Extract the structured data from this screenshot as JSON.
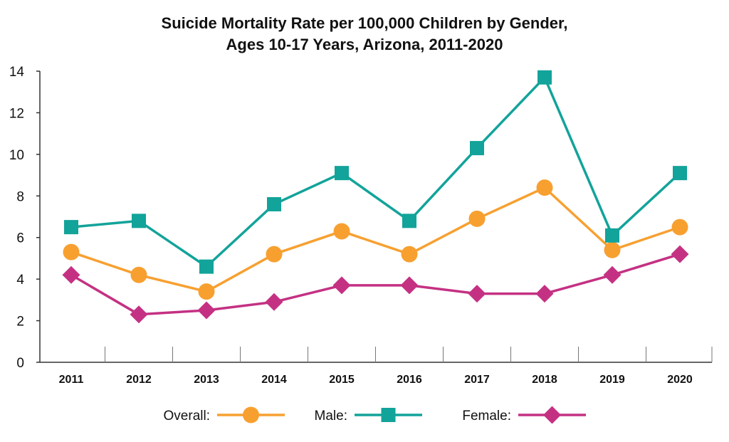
{
  "chart_data": {
    "type": "line",
    "title_lines": [
      "Suicide Mortality Rate per 100,000 Children by Gender,",
      "Ages 10-17 Years, Arizona, 2011-2020"
    ],
    "categories": [
      "2011",
      "2012",
      "2013",
      "2014",
      "2015",
      "2016",
      "2017",
      "2018",
      "2019",
      "2020"
    ],
    "ylim": [
      0,
      14
    ],
    "yticks": [
      0,
      2,
      4,
      6,
      8,
      10,
      12,
      14
    ],
    "grid": false,
    "legend_position": "bottom",
    "series": [
      {
        "name": "Overall:",
        "marker": "circle",
        "color": "#F7A030",
        "values": [
          5.3,
          4.2,
          3.4,
          5.2,
          6.3,
          5.2,
          6.9,
          8.4,
          5.4,
          6.5
        ]
      },
      {
        "name": "Male:",
        "marker": "square",
        "color": "#12A39A",
        "values": [
          6.5,
          6.8,
          4.6,
          7.6,
          9.1,
          6.8,
          10.3,
          13.7,
          6.1,
          9.1
        ]
      },
      {
        "name": "Female:",
        "marker": "diamond",
        "color": "#C43183",
        "values": [
          4.2,
          2.3,
          2.5,
          2.9,
          3.7,
          3.7,
          3.3,
          3.3,
          4.2,
          5.2
        ]
      }
    ]
  }
}
